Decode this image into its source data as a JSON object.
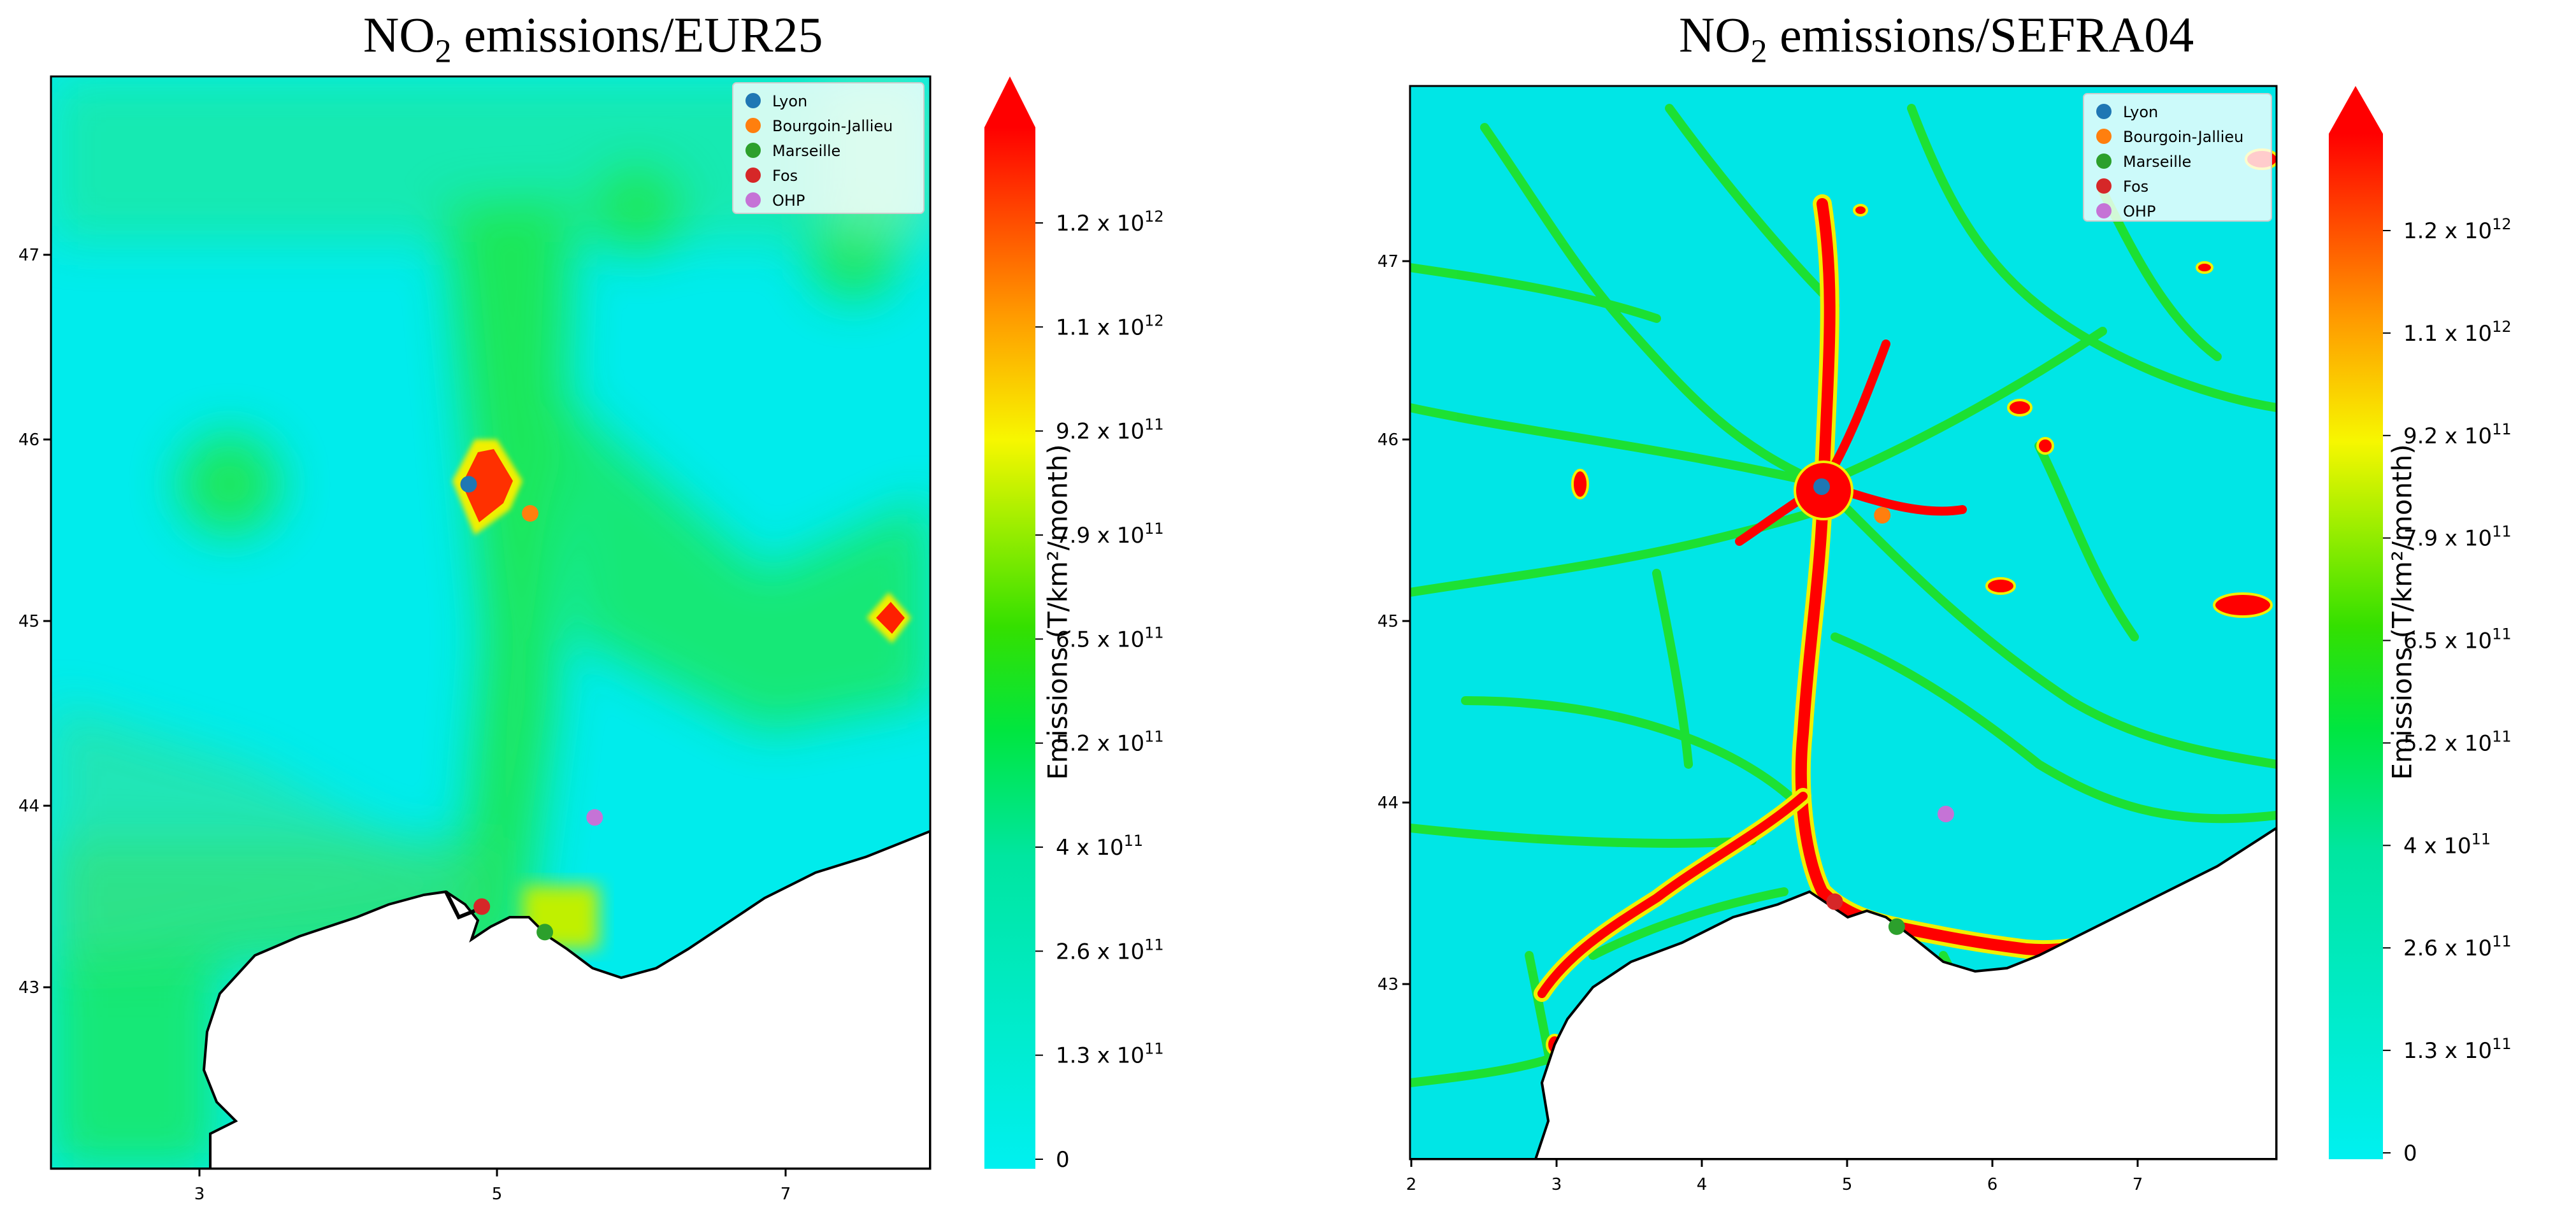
{
  "chart_data": [
    {
      "type": "heatmap",
      "title_main": "NO",
      "title_sub": "2",
      "title_rest": " emissions/EUR25",
      "x_ticks": [
        "3",
        "5",
        "7"
      ],
      "y_ticks": [
        "47",
        "46",
        "45",
        "44",
        "43"
      ],
      "xlim": [
        2,
        8
      ],
      "ylim": [
        42,
        48
      ],
      "colorbar": {
        "label": "Emissions (T/km²/month)",
        "ticks": [
          {
            "base": "1.2 x 10",
            "exp": "12",
            "value": 1200000000000.0
          },
          {
            "base": "1.1 x 10",
            "exp": "12",
            "value": 1100000000000.0
          },
          {
            "base": "9.2 x 10",
            "exp": "11",
            "value": 920000000000.0
          },
          {
            "base": "7.9 x 10",
            "exp": "11",
            "value": 790000000000.0
          },
          {
            "base": "6.5 x 10",
            "exp": "11",
            "value": 650000000000.0
          },
          {
            "base": "5.2 x 10",
            "exp": "11",
            "value": 520000000000.0
          },
          {
            "base": "4 x 10",
            "exp": "11",
            "value": 400000000000.0
          },
          {
            "base": "2.6 x 10",
            "exp": "11",
            "value": 260000000000.0
          },
          {
            "base": "1.3 x 10",
            "exp": "11",
            "value": 130000000000.0
          },
          {
            "base": "0",
            "exp": "",
            "value": 0
          }
        ],
        "colors": [
          "#00f0f0",
          "#00e640",
          "#34e000",
          "#f7f700",
          "#ff8c00",
          "#ff0000"
        ]
      },
      "legend": [
        {
          "name": "Lyon",
          "color": "#1f77b4",
          "lon": 4.85,
          "lat": 45.76
        },
        {
          "name": "Bourgoin-Jallieu",
          "color": "#ff7f0e",
          "lon": 5.27,
          "lat": 45.6
        },
        {
          "name": "Marseille",
          "color": "#2ca02c",
          "lon": 5.37,
          "lat": 43.3
        },
        {
          "name": "Fos",
          "color": "#d62728",
          "lon": 4.94,
          "lat": 43.44
        },
        {
          "name": "OHP",
          "color": "#c573d6",
          "lon": 5.71,
          "lat": 43.93
        }
      ],
      "legend_position": "top-right"
    },
    {
      "type": "heatmap",
      "title_main": "NO",
      "title_sub": "2",
      "title_rest": " emissions/SEFRA04",
      "x_ticks": [
        "2",
        "3",
        "4",
        "5",
        "6",
        "7"
      ],
      "y_ticks": [
        "47",
        "46",
        "45",
        "44",
        "43"
      ],
      "xlim": [
        2,
        8
      ],
      "ylim": [
        42,
        48
      ],
      "colorbar": {
        "label": "Emissions (T/km²/month)",
        "ticks": [
          {
            "base": "1.2 x 10",
            "exp": "12",
            "value": 1200000000000.0
          },
          {
            "base": "1.1 x 10",
            "exp": "12",
            "value": 1100000000000.0
          },
          {
            "base": "9.2 x 10",
            "exp": "11",
            "value": 920000000000.0
          },
          {
            "base": "7.9 x 10",
            "exp": "11",
            "value": 790000000000.0
          },
          {
            "base": "6.5 x 10",
            "exp": "11",
            "value": 650000000000.0
          },
          {
            "base": "5.2 x 10",
            "exp": "11",
            "value": 520000000000.0
          },
          {
            "base": "4 x 10",
            "exp": "11",
            "value": 400000000000.0
          },
          {
            "base": "2.6 x 10",
            "exp": "11",
            "value": 260000000000.0
          },
          {
            "base": "1.3 x 10",
            "exp": "11",
            "value": 130000000000.0
          },
          {
            "base": "0",
            "exp": "",
            "value": 0
          }
        ],
        "colors": [
          "#00f0f0",
          "#00e640",
          "#34e000",
          "#f7f700",
          "#ff8c00",
          "#ff0000"
        ]
      },
      "legend": [
        {
          "name": "Lyon",
          "color": "#1f77b4",
          "lon": 4.85,
          "lat": 45.76
        },
        {
          "name": "Bourgoin-Jallieu",
          "color": "#ff7f0e",
          "lon": 5.27,
          "lat": 45.6
        },
        {
          "name": "Marseille",
          "color": "#2ca02c",
          "lon": 5.37,
          "lat": 43.3
        },
        {
          "name": "Fos",
          "color": "#d62728",
          "lon": 4.94,
          "lat": 43.44
        },
        {
          "name": "OHP",
          "color": "#c573d6",
          "lon": 5.71,
          "lat": 43.93
        }
      ],
      "legend_position": "top-right"
    }
  ]
}
